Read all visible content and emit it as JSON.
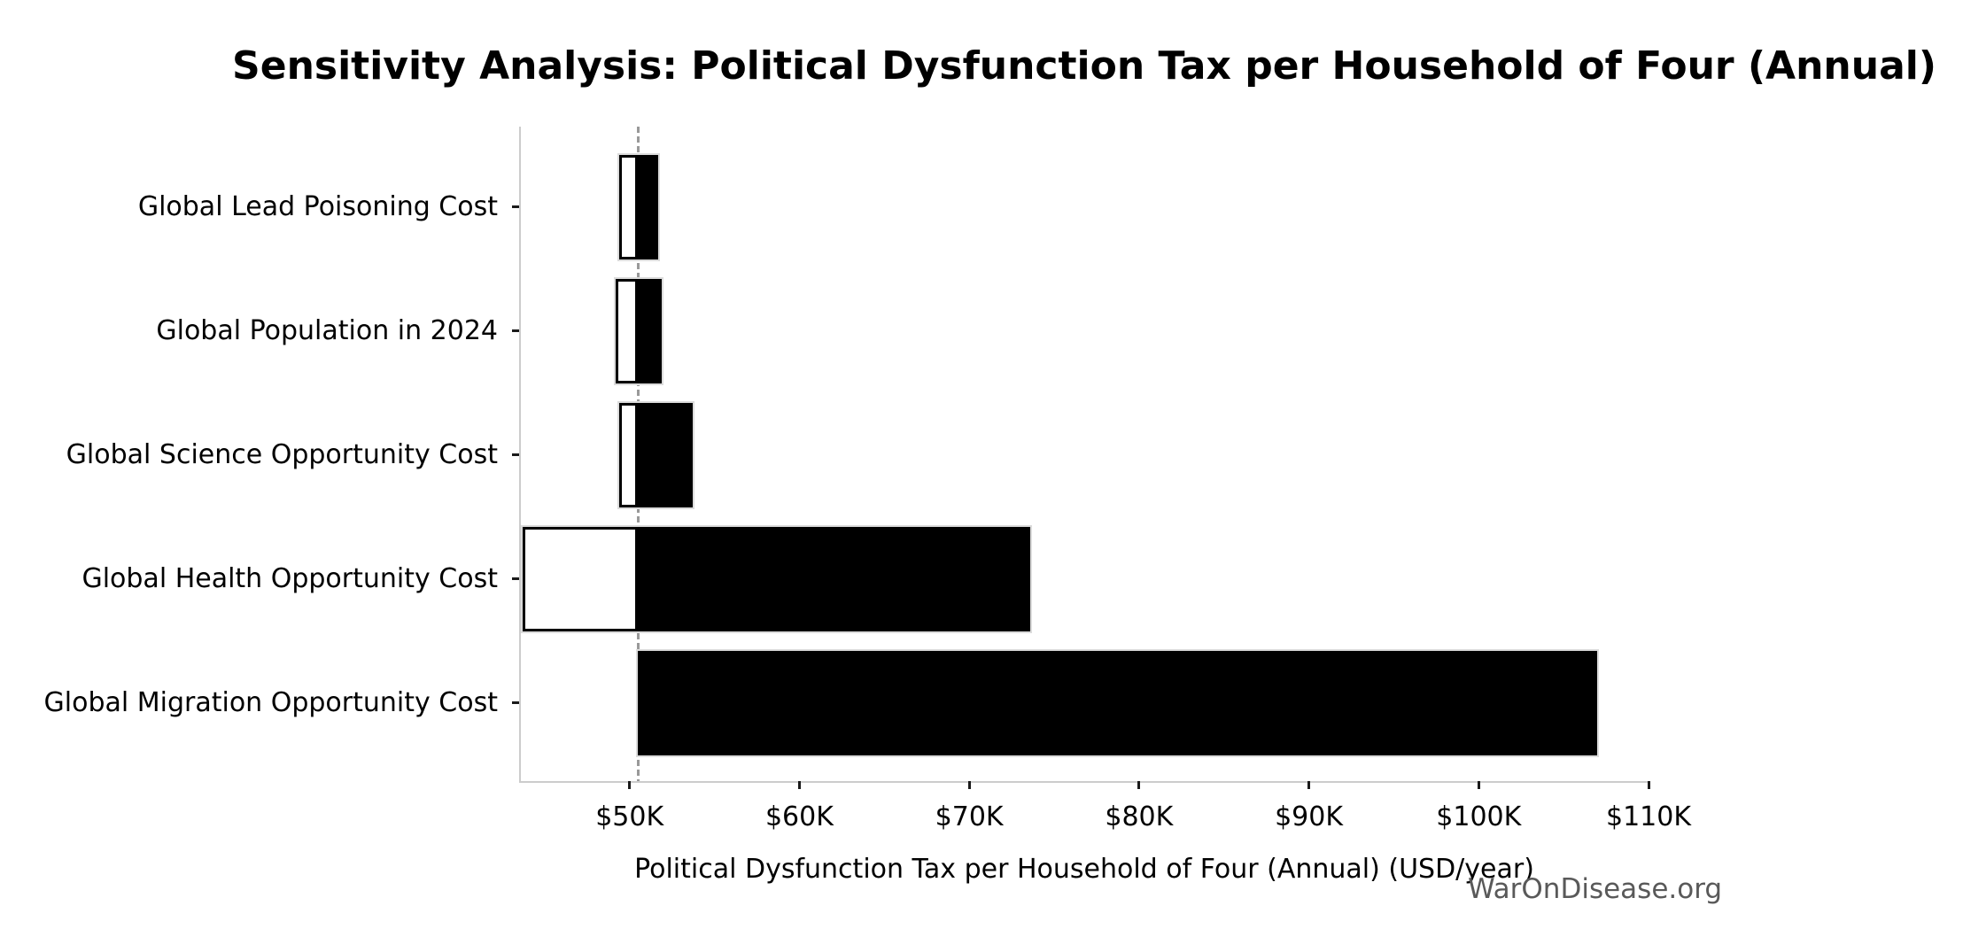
{
  "chart_data": {
    "type": "bar",
    "subtype": "tornado-sensitivity",
    "orientation": "horizontal",
    "title": "Sensitivity Analysis: Political Dysfunction Tax per Household of Four (Annual)",
    "xlabel": "Political Dysfunction Tax per Household of Four (Annual) (USD/year)",
    "watermark": "WarOnDisease.org",
    "grid": false,
    "legend": null,
    "x_axis": {
      "unit": "USD/year",
      "xlim": [
        43600,
        110000
      ],
      "ticks": [
        {
          "value": 50000,
          "label": "$50K"
        },
        {
          "value": 60000,
          "label": "$60K"
        },
        {
          "value": 70000,
          "label": "$70K"
        },
        {
          "value": 80000,
          "label": "$80K"
        },
        {
          "value": 90000,
          "label": "$90K"
        },
        {
          "value": 100000,
          "label": "$100K"
        },
        {
          "value": 110000,
          "label": "$110K"
        }
      ]
    },
    "baseline": {
      "value": 50500,
      "style": "dashed"
    },
    "rows": [
      {
        "label": "Global Lead Poisoning Cost",
        "low": 49400,
        "high": 51700
      },
      {
        "label": "Global Population in 2024",
        "low": 49200,
        "high": 51900
      },
      {
        "label": "Global Science Opportunity Cost",
        "low": 49400,
        "high": 53700
      },
      {
        "label": "Global Health Opportunity Cost",
        "low": 43700,
        "high": 73600
      },
      {
        "label": "Global Migration Opportunity Cost",
        "low": 50500,
        "high": 107000
      }
    ],
    "colors": {
      "bar_high": "#000000",
      "bar_low_fill": "#ffffff",
      "bar_low_edge": "#000000",
      "bar_outline": "#dcdcdc",
      "baseline_line": "#999999",
      "spine": "#cccccc",
      "tick": "#1a1a1a",
      "text": "#000000",
      "watermark": "#595959"
    }
  }
}
